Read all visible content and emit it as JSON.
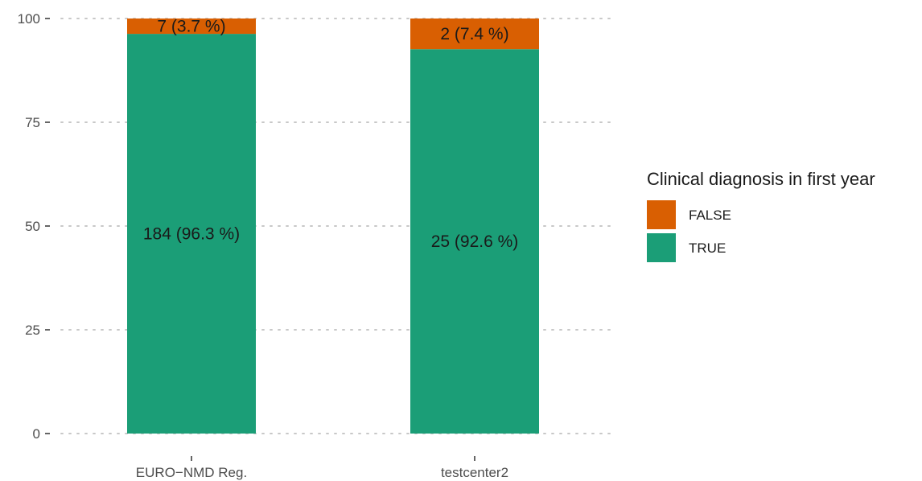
{
  "chart_data": {
    "type": "bar",
    "stacked": true,
    "categories": [
      "EURO−NMD Reg.",
      "testcenter2"
    ],
    "series": [
      {
        "name": "TRUE",
        "color": "#1b9e77",
        "values": [
          96.3,
          92.6
        ],
        "labels": [
          "184 (96.3 %)",
          "25 (92.6 %)"
        ]
      },
      {
        "name": "FALSE",
        "color": "#d95f02",
        "values": [
          3.7,
          7.4
        ],
        "labels": [
          "7 (3.7 %)",
          "2 (7.4 %)"
        ]
      }
    ],
    "legend": {
      "title": "Clinical diagnosis in first year",
      "placement": "right",
      "order": [
        "FALSE",
        "TRUE"
      ]
    },
    "ylim": [
      0,
      100
    ],
    "yticks": [
      0,
      25,
      50,
      75,
      100
    ],
    "ytick_labels": [
      "0",
      "25",
      "50",
      "75",
      "100"
    ],
    "grid": "horizontal-dotted",
    "gridColor": "#c8c8c8",
    "xlabel": "",
    "ylabel": ""
  }
}
